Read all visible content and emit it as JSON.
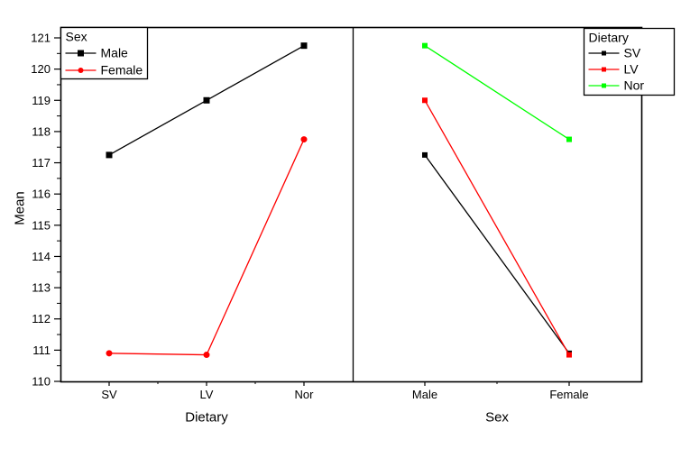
{
  "y_axis": {
    "label": "Mean",
    "ticks": [
      110,
      111,
      112,
      113,
      114,
      115,
      116,
      117,
      118,
      119,
      120,
      121
    ],
    "minor_step": 0.5
  },
  "chart_data": [
    {
      "type": "line",
      "panel": "left",
      "categories": [
        "SV",
        "LV",
        "Nor"
      ],
      "xlabel": "Dietary",
      "ylabel": "Mean",
      "ylim": [
        110,
        121.4
      ],
      "grid": false,
      "legend": {
        "title": "Sex",
        "position": "top-left"
      },
      "series": [
        {
          "name": "Male",
          "color": "#000000",
          "marker": "square",
          "values": [
            117.25,
            119.0,
            120.75
          ]
        },
        {
          "name": "Female",
          "color": "#ff0000",
          "marker": "circle",
          "values": [
            110.9,
            110.85,
            117.75
          ]
        }
      ]
    },
    {
      "type": "line",
      "panel": "right",
      "categories": [
        "Male",
        "Female"
      ],
      "xlabel": "Sex",
      "ylabel": "Mean",
      "ylim": [
        110,
        121.4
      ],
      "grid": false,
      "legend": {
        "title": "Dietary",
        "position": "top-right"
      },
      "series": [
        {
          "name": "SV",
          "color": "#000000",
          "marker": "square",
          "values": [
            117.25,
            110.9
          ]
        },
        {
          "name": "LV",
          "color": "#ff0000",
          "marker": "square",
          "values": [
            119.0,
            110.85
          ]
        },
        {
          "name": "Nor",
          "color": "#00ff00",
          "marker": "square",
          "values": [
            120.75,
            117.75
          ]
        }
      ]
    }
  ]
}
